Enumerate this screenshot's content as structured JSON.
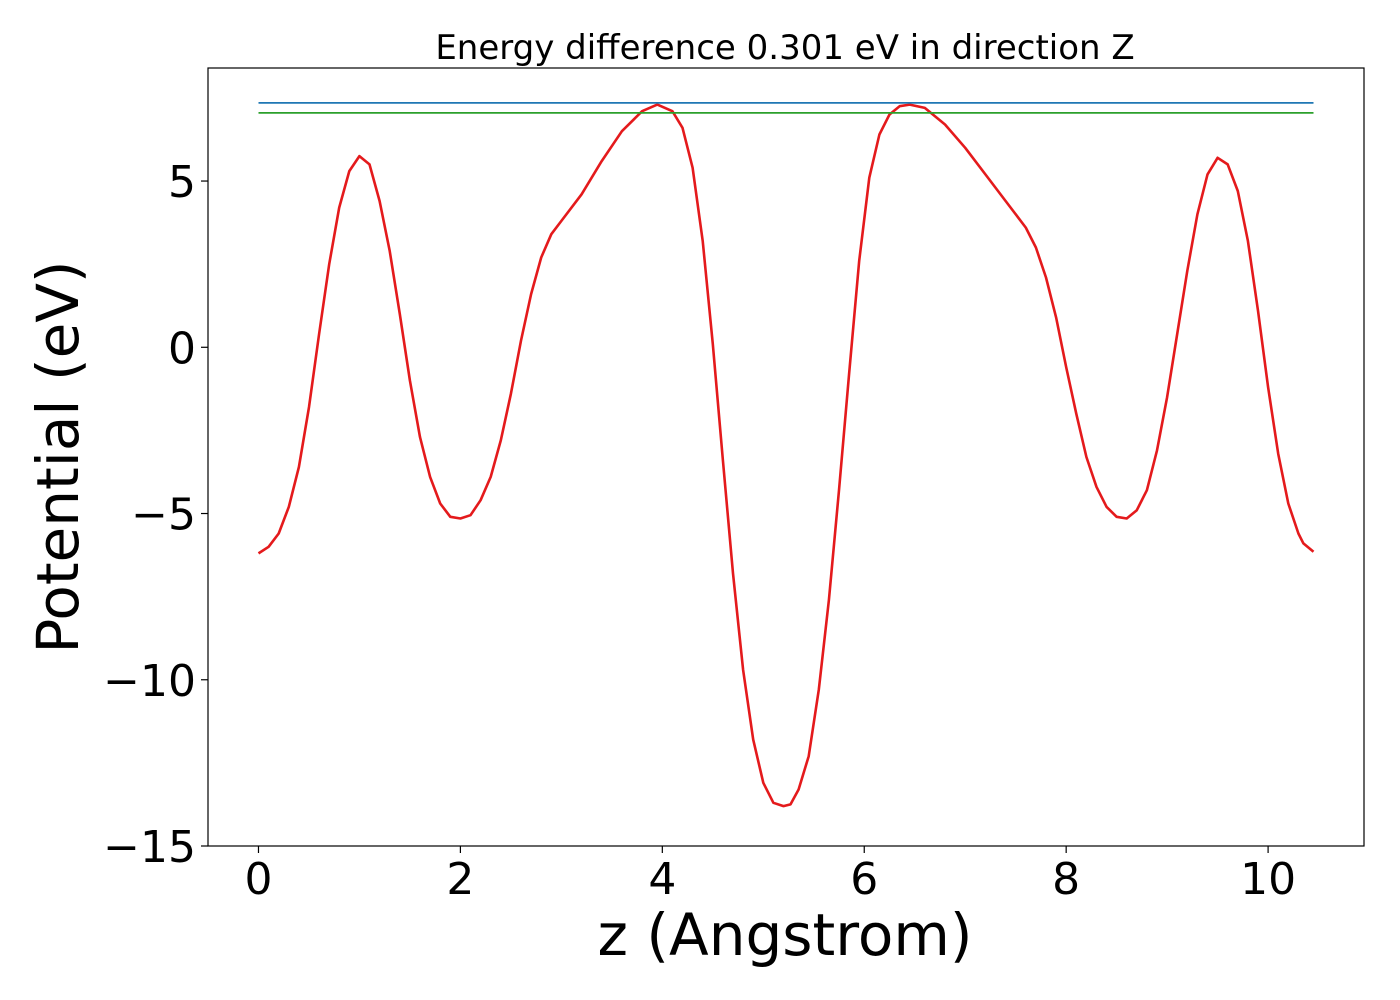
{
  "chart_data": {
    "type": "line",
    "title": "Energy difference 0.301 eV in direction Z",
    "xlabel": "z (Angstrom)",
    "ylabel": "Potential (eV)",
    "xlim": [
      -0.5,
      10.95
    ],
    "ylim": [
      -15,
      8.4
    ],
    "xticks": [
      0,
      2,
      4,
      6,
      8,
      10
    ],
    "xtick_labels": [
      "0",
      "2",
      "4",
      "6",
      "8",
      "10"
    ],
    "yticks": [
      5,
      0,
      -5,
      -10,
      -15
    ],
    "ytick_labels": [
      "5",
      "0",
      "−5",
      "−10",
      "−15"
    ],
    "grid": false,
    "legend": "none",
    "series": [
      {
        "color": "#e41a1c",
        "x": [
          0,
          0.1,
          0.2,
          0.3,
          0.4,
          0.5,
          0.6,
          0.7,
          0.8,
          0.9,
          1.0,
          1.1,
          1.2,
          1.3,
          1.4,
          1.5,
          1.6,
          1.7,
          1.8,
          1.9,
          2.0,
          2.1,
          2.2,
          2.3,
          2.4,
          2.5,
          2.6,
          2.7,
          2.8,
          2.9,
          3.0,
          3.2,
          3.4,
          3.6,
          3.8,
          3.95,
          4.1,
          4.2,
          4.3,
          4.4,
          4.5,
          4.6,
          4.7,
          4.8,
          4.9,
          5.0,
          5.1,
          5.2,
          5.27,
          5.35,
          5.45,
          5.55,
          5.65,
          5.75,
          5.85,
          5.95,
          6.05,
          6.15,
          6.25,
          6.35,
          6.45,
          6.6,
          6.8,
          7.0,
          7.2,
          7.4,
          7.6,
          7.7,
          7.8,
          7.9,
          8.0,
          8.1,
          8.2,
          8.3,
          8.4,
          8.5,
          8.6,
          8.7,
          8.8,
          8.9,
          9.0,
          9.1,
          9.2,
          9.3,
          9.4,
          9.5,
          9.6,
          9.7,
          9.8,
          9.9,
          10.0,
          10.1,
          10.2,
          10.3,
          10.35,
          10.45
        ],
        "y": [
          -6.2,
          -6.0,
          -5.6,
          -4.8,
          -3.6,
          -1.8,
          0.4,
          2.5,
          4.2,
          5.3,
          5.75,
          5.5,
          4.4,
          2.9,
          1.0,
          -1.0,
          -2.7,
          -3.9,
          -4.7,
          -5.1,
          -5.15,
          -5.05,
          -4.6,
          -3.9,
          -2.8,
          -1.4,
          0.2,
          1.6,
          2.7,
          3.4,
          3.8,
          4.6,
          5.6,
          6.5,
          7.1,
          7.3,
          7.1,
          6.6,
          5.4,
          3.2,
          0.1,
          -3.4,
          -6.8,
          -9.7,
          -11.8,
          -13.1,
          -13.7,
          -13.8,
          -13.75,
          -13.3,
          -12.3,
          -10.3,
          -7.6,
          -4.3,
          -0.8,
          2.6,
          5.1,
          6.4,
          7.0,
          7.25,
          7.3,
          7.2,
          6.7,
          6.0,
          5.2,
          4.4,
          3.6,
          3.0,
          2.1,
          0.9,
          -0.6,
          -2.0,
          -3.3,
          -4.2,
          -4.8,
          -5.1,
          -5.15,
          -4.9,
          -4.3,
          -3.1,
          -1.5,
          0.4,
          2.3,
          4.0,
          5.2,
          5.7,
          5.5,
          4.7,
          3.2,
          1.1,
          -1.2,
          -3.2,
          -4.7,
          -5.6,
          -5.9,
          -6.15
        ]
      },
      {
        "color": "#1f77b4",
        "x": [
          0,
          10.45
        ],
        "y": [
          7.35,
          7.35
        ]
      },
      {
        "color": "#2ca02c",
        "x": [
          0,
          10.45
        ],
        "y": [
          7.05,
          7.05
        ]
      }
    ]
  }
}
